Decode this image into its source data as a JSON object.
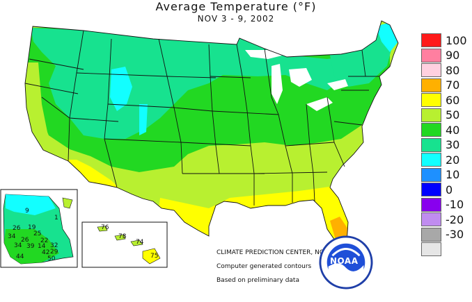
{
  "title": "Average Temperature (°F)",
  "subtitle": "NOV 3 - 9, 2002",
  "legend": {
    "items": [
      {
        "value": "100",
        "color": "#ff1a1a"
      },
      {
        "value": "90",
        "color": "#ff7fa0"
      },
      {
        "value": "80",
        "color": "#ffd0e0"
      },
      {
        "value": "70",
        "color": "#ffb000"
      },
      {
        "value": "60",
        "color": "#ffff00"
      },
      {
        "value": "50",
        "color": "#b8f030"
      },
      {
        "value": "40",
        "color": "#22d822"
      },
      {
        "value": "30",
        "color": "#17e28f"
      },
      {
        "value": "20",
        "color": "#12ffff"
      },
      {
        "value": "10",
        "color": "#1e90ff"
      },
      {
        "value": "0",
        "color": "#0000ff"
      },
      {
        "value": "-10",
        "color": "#8800ee"
      },
      {
        "value": "-20",
        "color": "#c08cf0"
      },
      {
        "value": "-30",
        "color": "#a8a8a8"
      },
      {
        "value": "",
        "color": "#e6e6e6"
      }
    ]
  },
  "credits": {
    "line1": "CLIMATE PREDICTION CENTER, NOAA",
    "line2": "Computer generated contours",
    "line3": "Based on preliminary data"
  },
  "alaska": {
    "labels": [
      "9",
      "1",
      "26",
      "19",
      "34",
      "25",
      "26",
      "22",
      "34",
      "14",
      "32",
      "44",
      "42",
      "39",
      "50",
      "29"
    ]
  },
  "hawaii": {
    "labels": [
      "76",
      "78",
      "74",
      "75"
    ]
  },
  "noaa": {
    "name": "NOAA"
  }
}
